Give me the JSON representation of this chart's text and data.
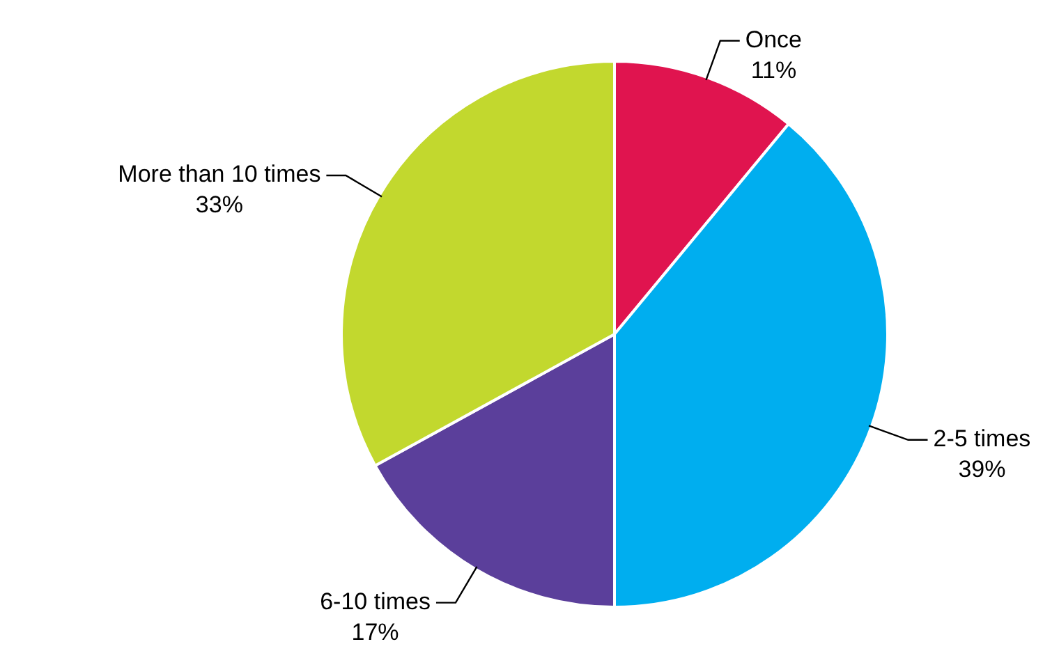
{
  "chart_data": {
    "type": "pie",
    "categories": [
      "Once",
      "2-5 times",
      "6-10 times",
      "More than 10 times"
    ],
    "values": [
      11,
      39,
      17,
      33
    ],
    "colors": [
      "#e0144f",
      "#00aeef",
      "#5b3f9b",
      "#c2d82e"
    ],
    "value_labels": [
      "11%",
      "39%",
      "17%",
      "33%"
    ],
    "legend": false
  }
}
